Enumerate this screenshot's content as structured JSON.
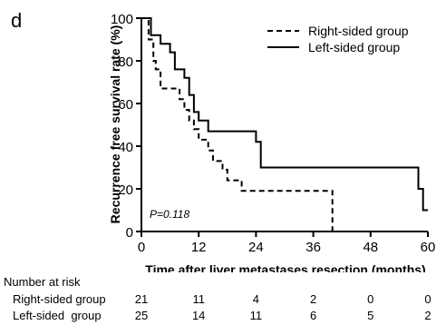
{
  "panel_label": "d",
  "number_at_risk": {
    "title": "Number at risk",
    "rows": [
      {
        "label": "Right-sided group",
        "values": [
          "21",
          "11",
          "4",
          "2",
          "0",
          "0"
        ]
      },
      {
        "label": "Left-sided  group",
        "values": [
          "25",
          "14",
          "11",
          "6",
          "5",
          "2"
        ]
      }
    ]
  },
  "chart_data": {
    "type": "line",
    "title": "",
    "xlabel": "Time after liver metastases resection (months)",
    "ylabel": "Recurrence free survival rate (%)",
    "xlim": [
      0,
      60
    ],
    "ylim": [
      0,
      100
    ],
    "xticks": [
      0,
      12,
      24,
      36,
      48,
      60
    ],
    "yticks": [
      0,
      20,
      40,
      60,
      80,
      100
    ],
    "annotation": "P=0.118",
    "legend_position": "top-right",
    "step_function": true,
    "series": [
      {
        "name": "Right-sided group",
        "line_style": "dashed",
        "color": "#000000",
        "points": [
          [
            0,
            100
          ],
          [
            1.5,
            100
          ],
          [
            1.5,
            90
          ],
          [
            2.5,
            90
          ],
          [
            2.5,
            80
          ],
          [
            3,
            80
          ],
          [
            3,
            76
          ],
          [
            4,
            76
          ],
          [
            4,
            67
          ],
          [
            8,
            67
          ],
          [
            8,
            62
          ],
          [
            9,
            62
          ],
          [
            9,
            57
          ],
          [
            10,
            57
          ],
          [
            10,
            52
          ],
          [
            11,
            52
          ],
          [
            11,
            48
          ],
          [
            12,
            48
          ],
          [
            12,
            43
          ],
          [
            14,
            43
          ],
          [
            14,
            38
          ],
          [
            15,
            38
          ],
          [
            15,
            33
          ],
          [
            17,
            33
          ],
          [
            17,
            29
          ],
          [
            18,
            29
          ],
          [
            18,
            24
          ],
          [
            21,
            24
          ],
          [
            21,
            19
          ],
          [
            40,
            19
          ],
          [
            40,
            0
          ]
        ]
      },
      {
        "name": "Left-sided group",
        "line_style": "solid",
        "color": "#000000",
        "points": [
          [
            0,
            100
          ],
          [
            2,
            100
          ],
          [
            2,
            92
          ],
          [
            4,
            92
          ],
          [
            4,
            88
          ],
          [
            6,
            88
          ],
          [
            6,
            84
          ],
          [
            7,
            84
          ],
          [
            7,
            76
          ],
          [
            9,
            76
          ],
          [
            9,
            72
          ],
          [
            10,
            72
          ],
          [
            10,
            64
          ],
          [
            11,
            64
          ],
          [
            11,
            56
          ],
          [
            12,
            56
          ],
          [
            12,
            52
          ],
          [
            14,
            52
          ],
          [
            14,
            47
          ],
          [
            24,
            47
          ],
          [
            24,
            42
          ],
          [
            25,
            42
          ],
          [
            25,
            30
          ],
          [
            58,
            30
          ],
          [
            58,
            20
          ],
          [
            59,
            20
          ],
          [
            59,
            10
          ],
          [
            60,
            10
          ]
        ]
      }
    ]
  }
}
